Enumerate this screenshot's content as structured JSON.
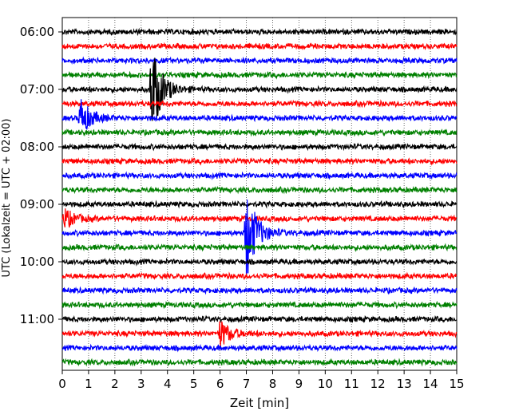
{
  "chart_data": {
    "type": "line",
    "title": "",
    "xlabel": "Zeit  [min]",
    "ylabel": "UTC (Lokalzeit = UTC + 02:00)",
    "xlim": [
      0,
      15
    ],
    "x_ticks": [
      0,
      1,
      2,
      3,
      4,
      5,
      6,
      7,
      8,
      9,
      10,
      11,
      12,
      13,
      14,
      15
    ],
    "y_tick_labels": [
      "06:00",
      "07:00",
      "08:00",
      "09:00",
      "10:00",
      "11:00"
    ],
    "trace_interval_minutes": 15,
    "grid": "vertical dotted",
    "color_cycle": [
      "#000000",
      "#ff0000",
      "#0000ff",
      "#008000"
    ],
    "traces": [
      {
        "start": "06:00",
        "color": "#000000",
        "events": []
      },
      {
        "start": "06:15",
        "color": "#ff0000",
        "events": []
      },
      {
        "start": "06:30",
        "color": "#0000ff",
        "events": []
      },
      {
        "start": "06:45",
        "color": "#008000",
        "events": []
      },
      {
        "start": "07:00",
        "color": "#000000",
        "events": [
          {
            "minute": 3.4,
            "relative_amplitude": 1.0
          }
        ]
      },
      {
        "start": "07:15",
        "color": "#ff0000",
        "events": []
      },
      {
        "start": "07:30",
        "color": "#0000ff",
        "events": [
          {
            "minute": 0.7,
            "relative_amplitude": 0.4
          }
        ]
      },
      {
        "start": "07:45",
        "color": "#008000",
        "events": []
      },
      {
        "start": "08:00",
        "color": "#000000",
        "events": []
      },
      {
        "start": "08:15",
        "color": "#ff0000",
        "events": []
      },
      {
        "start": "08:30",
        "color": "#0000ff",
        "events": []
      },
      {
        "start": "08:45",
        "color": "#008000",
        "events": []
      },
      {
        "start": "09:00",
        "color": "#000000",
        "events": []
      },
      {
        "start": "09:15",
        "color": "#ff0000",
        "events": [
          {
            "minute": 0.1,
            "relative_amplitude": 0.2
          }
        ]
      },
      {
        "start": "09:30",
        "color": "#0000ff",
        "events": [
          {
            "minute": 7.0,
            "relative_amplitude": 1.0
          }
        ]
      },
      {
        "start": "09:45",
        "color": "#008000",
        "events": []
      },
      {
        "start": "10:00",
        "color": "#000000",
        "events": []
      },
      {
        "start": "10:15",
        "color": "#ff0000",
        "events": []
      },
      {
        "start": "10:30",
        "color": "#0000ff",
        "events": []
      },
      {
        "start": "10:45",
        "color": "#008000",
        "events": []
      },
      {
        "start": "11:00",
        "color": "#000000",
        "events": []
      },
      {
        "start": "11:15",
        "color": "#ff0000",
        "events": [
          {
            "minute": 6.0,
            "relative_amplitude": 0.3
          }
        ]
      },
      {
        "start": "11:30",
        "color": "#0000ff",
        "events": []
      },
      {
        "start": "11:45",
        "color": "#008000",
        "events": []
      }
    ]
  }
}
